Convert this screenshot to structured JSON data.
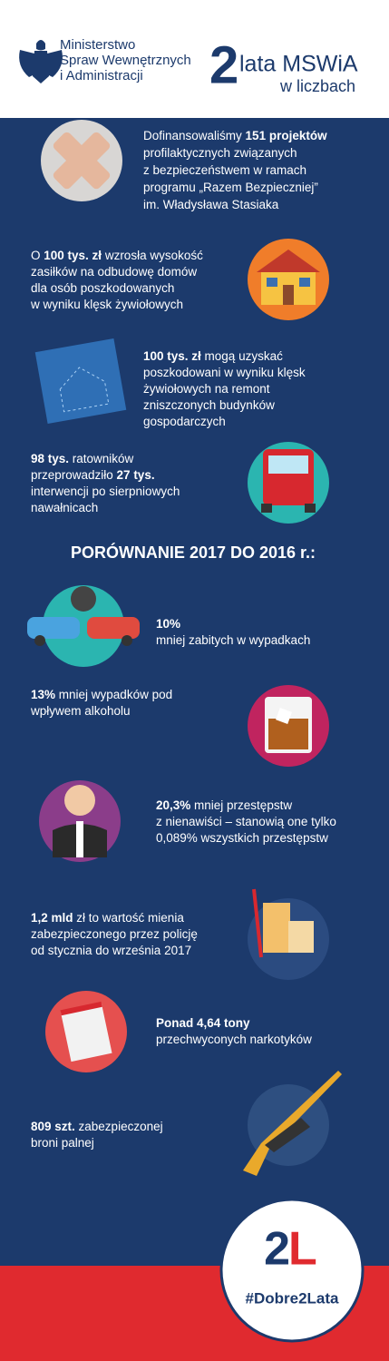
{
  "header": {
    "ministry": [
      "Ministerstwo",
      "Spraw Wewnętrznych",
      "i Administracji"
    ],
    "big_number": "2",
    "title": "lata MSWiA",
    "subtitle": "w liczbach"
  },
  "items": [
    {
      "lines": [
        [
          {
            "text": "Dofinansowaliśmy ",
            "bold": false
          },
          {
            "text": "151 projektów",
            "bold": true
          }
        ],
        [
          {
            "text": "profilaktycznych związanych",
            "bold": false
          }
        ],
        [
          {
            "text": "z bezpieczeństwem w ramach",
            "bold": false
          }
        ],
        [
          {
            "text": "programu „Razem Bezpieczniej”",
            "bold": false
          }
        ],
        [
          {
            "text": "im. Władysława Stasiaka",
            "bold": false
          }
        ]
      ]
    },
    {
      "lines": [
        [
          {
            "text": "O ",
            "bold": false
          },
          {
            "text": "100 tys. zł",
            "bold": true
          },
          {
            "text": " wzrosła wysokość",
            "bold": false
          }
        ],
        [
          {
            "text": "zasiłków na odbudowę domów",
            "bold": false
          }
        ],
        [
          {
            "text": "dla osób poszkodowanych",
            "bold": false
          }
        ],
        [
          {
            "text": "w wyniku klęsk żywiołowych",
            "bold": false
          }
        ]
      ]
    },
    {
      "lines": [
        [
          {
            "text": "100 tys. zł",
            "bold": true
          },
          {
            "text": " mogą uzyskać",
            "bold": false
          }
        ],
        [
          {
            "text": "poszkodowani w wyniku klęsk",
            "bold": false
          }
        ],
        [
          {
            "text": "żywiołowych na remont",
            "bold": false
          }
        ],
        [
          {
            "text": "zniszczonych budynków",
            "bold": false
          }
        ],
        [
          {
            "text": "gospodarczych",
            "bold": false
          }
        ]
      ]
    },
    {
      "lines": [
        [
          {
            "text": "98 tys.",
            "bold": true
          },
          {
            "text": " ratowników",
            "bold": false
          }
        ],
        [
          {
            "text": "przeprowadziło ",
            "bold": false
          },
          {
            "text": "27 tys.",
            "bold": true
          }
        ],
        [
          {
            "text": "interwencji po sierpniowych",
            "bold": false
          }
        ],
        [
          {
            "text": "nawałnicach",
            "bold": false
          }
        ]
      ]
    },
    {
      "lines": [
        [
          {
            "text": "10%",
            "bold": true
          }
        ],
        [
          {
            "text": "mniej zabitych w wypadkach",
            "bold": false
          }
        ]
      ]
    },
    {
      "lines": [
        [
          {
            "text": "13%",
            "bold": true
          },
          {
            "text": " mniej wypadków pod",
            "bold": false
          }
        ],
        [
          {
            "text": "wpływem alkoholu",
            "bold": false
          }
        ]
      ]
    },
    {
      "lines": [
        [
          {
            "text": "20,3%",
            "bold": true
          },
          {
            "text": " mniej przestępstw",
            "bold": false
          }
        ],
        [
          {
            "text": "z nienawiści – stanowią one tylko",
            "bold": false
          }
        ],
        [
          {
            "text": "0,089% wszystkich przestępstw",
            "bold": false
          }
        ]
      ]
    },
    {
      "lines": [
        [
          {
            "text": "1,2 mld",
            "bold": true
          },
          {
            "text": " zł to wartość mienia",
            "bold": false
          }
        ],
        [
          {
            "text": "zabezpieczonego przez policję",
            "bold": false
          }
        ],
        [
          {
            "text": "od stycznia do września 2017",
            "bold": false
          }
        ]
      ]
    },
    {
      "lines": [
        [
          {
            "text": "Ponad 4,64 tony",
            "bold": true
          }
        ],
        [
          {
            "text": "przechwyconych narkotyków",
            "bold": false
          }
        ]
      ]
    },
    {
      "lines": [
        [
          {
            "text": "809 szt.",
            "bold": true
          },
          {
            "text": " zabezpieczonej",
            "bold": false
          }
        ],
        [
          {
            "text": "broni palnej",
            "bold": false
          }
        ]
      ]
    }
  ],
  "section_heading": "PORÓWNANIE 2017 DO 2016 r.:",
  "footer": {
    "logo_left": "2",
    "logo_right": "L",
    "hashtag": "#Dobre2Lata"
  }
}
